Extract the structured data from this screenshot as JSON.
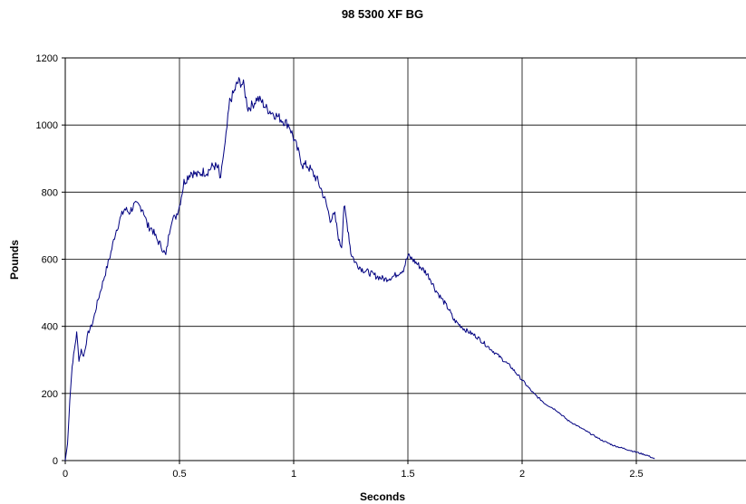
{
  "chart_data": {
    "type": "line",
    "title": "98 5300 XF BG",
    "xlabel": "Seconds",
    "ylabel": "Pounds",
    "xlim": [
      0,
      3
    ],
    "ylim": [
      0,
      1200
    ],
    "xticks": [
      0,
      0.5,
      1,
      1.5,
      2,
      2.5
    ],
    "xtick_labels": [
      "0",
      "0.5",
      "1",
      "1.5",
      "2",
      "2.5"
    ],
    "yticks": [
      0,
      200,
      400,
      600,
      800,
      1000,
      1200
    ],
    "ytick_labels": [
      "0",
      "200",
      "400",
      "600",
      "800",
      "1000",
      "1200"
    ],
    "grid": true,
    "legend": "none",
    "colors": {
      "series": "#000080",
      "grid": "#000000"
    },
    "series": [
      {
        "x": [
          0,
          0.01,
          0.02,
          0.03,
          0.04,
          0.05,
          0.06,
          0.07,
          0.08,
          0.1,
          0.12,
          0.14,
          0.16,
          0.18,
          0.2,
          0.22,
          0.24,
          0.26,
          0.28,
          0.3,
          0.32,
          0.34,
          0.36,
          0.38,
          0.4,
          0.42,
          0.44,
          0.46,
          0.47,
          0.48,
          0.5,
          0.52,
          0.55,
          0.58,
          0.6,
          0.62,
          0.65,
          0.67,
          0.68,
          0.69,
          0.7,
          0.72,
          0.74,
          0.75,
          0.76,
          0.78,
          0.8,
          0.82,
          0.84,
          0.86,
          0.88,
          0.9,
          0.92,
          0.94,
          0.96,
          0.98,
          1.0,
          1.02,
          1.04,
          1.06,
          1.08,
          1.1,
          1.12,
          1.14,
          1.16,
          1.18,
          1.2,
          1.21,
          1.22,
          1.23,
          1.24,
          1.25,
          1.27,
          1.3,
          1.33,
          1.36,
          1.4,
          1.44,
          1.48,
          1.5,
          1.52,
          1.55,
          1.58,
          1.6,
          1.62,
          1.65,
          1.68,
          1.7,
          1.75,
          1.8,
          1.85,
          1.9,
          1.95,
          2.0,
          2.05,
          2.1,
          2.15,
          2.2,
          2.25,
          2.3,
          2.35,
          2.4,
          2.45,
          2.5,
          2.55,
          2.58
        ],
        "y": [
          0,
          50,
          180,
          280,
          330,
          380,
          300,
          330,
          310,
          380,
          410,
          470,
          520,
          570,
          620,
          680,
          720,
          750,
          740,
          760,
          760,
          750,
          700,
          690,
          660,
          640,
          610,
          700,
          730,
          720,
          760,
          830,
          860,
          850,
          860,
          860,
          880,
          870,
          830,
          900,
          940,
          1070,
          1100,
          1120,
          1130,
          1120,
          1050,
          1060,
          1080,
          1070,
          1050,
          1040,
          1030,
          1020,
          1010,
          1000,
          960,
          920,
          880,
          880,
          860,
          840,
          810,
          770,
          720,
          730,
          650,
          640,
          760,
          720,
          680,
          620,
          590,
          570,
          560,
          550,
          540,
          550,
          570,
          610,
          600,
          580,
          560,
          540,
          510,
          480,
          450,
          420,
          390,
          370,
          340,
          310,
          280,
          240,
          200,
          170,
          150,
          120,
          100,
          80,
          60,
          45,
          35,
          25,
          15,
          5
        ]
      }
    ]
  }
}
